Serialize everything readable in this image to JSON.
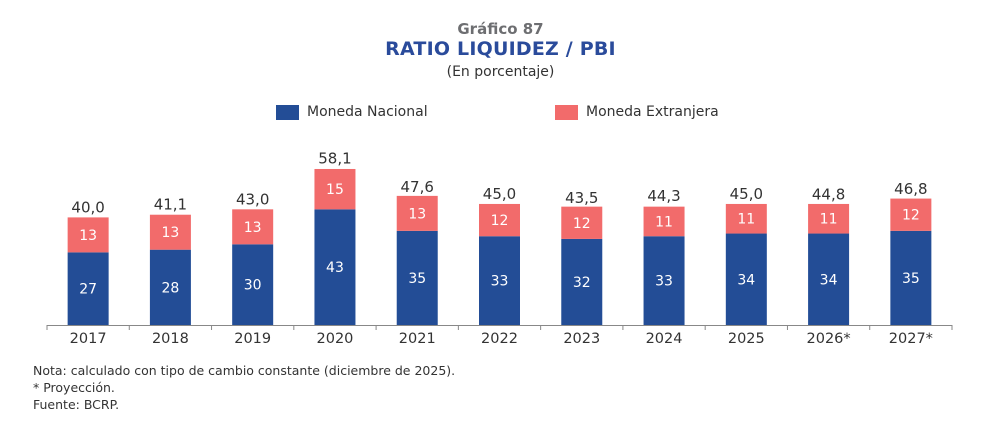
{
  "header": {
    "figure_number": "Gráfico 87",
    "title": "RATIO LIQUIDEZ / PBI",
    "subtitle": "(En porcentaje)"
  },
  "legend": [
    {
      "label": "Moneda Nacional",
      "color": "#234d96"
    },
    {
      "label": "Moneda Extranjera",
      "color": "#f26b6b"
    }
  ],
  "notes": [
    "Nota: calculado con tipo de cambio constante (diciembre de 2025).",
    "* Proyección.",
    "Fuente: BCRP."
  ],
  "chart_data": {
    "type": "bar",
    "stacked": true,
    "title": "RATIO LIQUIDEZ / PBI",
    "subtitle": "(En porcentaje)",
    "xlabel": "",
    "ylabel": "",
    "ylim": [
      0,
      60
    ],
    "grid": false,
    "legend_position": "top",
    "categories": [
      "2017",
      "2018",
      "2019",
      "2020",
      "2021",
      "2022",
      "2023",
      "2024",
      "2025",
      "2026*",
      "2027*"
    ],
    "series": [
      {
        "name": "Moneda Nacional",
        "color": "#234d96",
        "values": [
          27,
          28,
          30,
          43,
          35,
          33,
          32,
          33,
          34,
          34,
          35
        ],
        "labels": [
          "27",
          "28",
          "30",
          "43",
          "35",
          "33",
          "32",
          "33",
          "34",
          "34",
          "35"
        ]
      },
      {
        "name": "Moneda Extranjera",
        "color": "#f26b6b",
        "values": [
          13,
          13,
          13,
          15,
          13,
          12,
          12,
          11,
          11,
          11,
          12
        ],
        "labels": [
          "13",
          "13",
          "13",
          "15",
          "13",
          "12",
          "12",
          "11",
          "11",
          "11",
          "12"
        ]
      }
    ],
    "totals": [
      40.0,
      41.1,
      43.0,
      58.1,
      47.6,
      45.0,
      43.5,
      44.3,
      45.0,
      44.8,
      46.8
    ],
    "total_labels": [
      "40,0",
      "41,1",
      "43,0",
      "58,1",
      "47,6",
      "45,0",
      "43,5",
      "44,3",
      "45,0",
      "44,8",
      "46,8"
    ]
  }
}
